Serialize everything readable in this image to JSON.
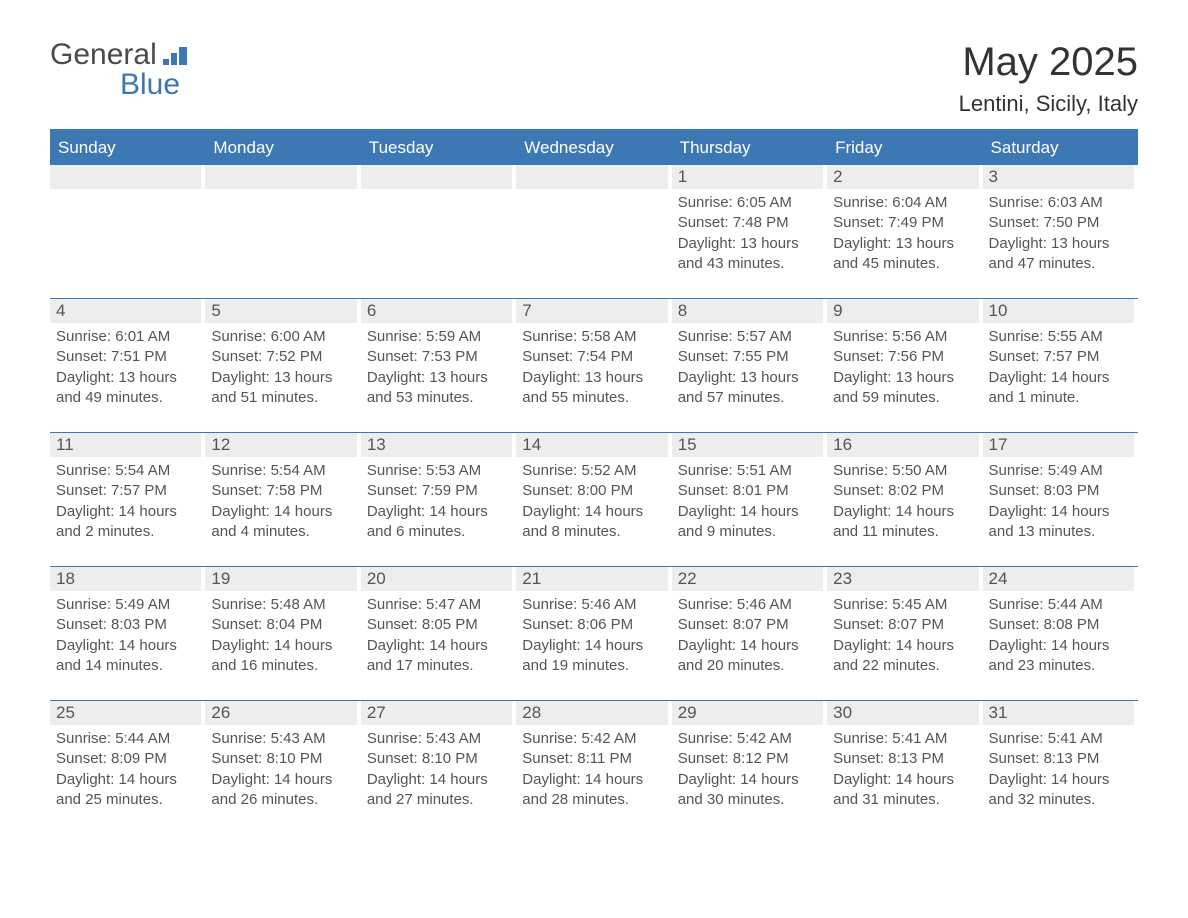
{
  "brand": {
    "name_part1": "General",
    "name_part2": "Blue",
    "text_color": "#4a4a4a",
    "accent_color": "#3c78b4"
  },
  "title": "May 2025",
  "location": "Lentini, Sicily, Italy",
  "colors": {
    "header_bg": "#3c78b4",
    "header_text": "#ffffff",
    "date_bar_bg": "#ededed",
    "body_text": "#555555",
    "page_bg": "#ffffff"
  },
  "font_sizes": {
    "title_pt": 40,
    "location_pt": 22,
    "dow_pt": 17,
    "date_pt": 17,
    "body_pt": 15
  },
  "days_of_week": [
    "Sunday",
    "Monday",
    "Tuesday",
    "Wednesday",
    "Thursday",
    "Friday",
    "Saturday"
  ],
  "labels": {
    "sunrise": "Sunrise:",
    "sunset": "Sunset:",
    "daylight": "Daylight:"
  },
  "weeks": [
    [
      null,
      null,
      null,
      null,
      {
        "date": "1",
        "sunrise": "6:05 AM",
        "sunset": "7:48 PM",
        "daylight": "13 hours and 43 minutes."
      },
      {
        "date": "2",
        "sunrise": "6:04 AM",
        "sunset": "7:49 PM",
        "daylight": "13 hours and 45 minutes."
      },
      {
        "date": "3",
        "sunrise": "6:03 AM",
        "sunset": "7:50 PM",
        "daylight": "13 hours and 47 minutes."
      }
    ],
    [
      {
        "date": "4",
        "sunrise": "6:01 AM",
        "sunset": "7:51 PM",
        "daylight": "13 hours and 49 minutes."
      },
      {
        "date": "5",
        "sunrise": "6:00 AM",
        "sunset": "7:52 PM",
        "daylight": "13 hours and 51 minutes."
      },
      {
        "date": "6",
        "sunrise": "5:59 AM",
        "sunset": "7:53 PM",
        "daylight": "13 hours and 53 minutes."
      },
      {
        "date": "7",
        "sunrise": "5:58 AM",
        "sunset": "7:54 PM",
        "daylight": "13 hours and 55 minutes."
      },
      {
        "date": "8",
        "sunrise": "5:57 AM",
        "sunset": "7:55 PM",
        "daylight": "13 hours and 57 minutes."
      },
      {
        "date": "9",
        "sunrise": "5:56 AM",
        "sunset": "7:56 PM",
        "daylight": "13 hours and 59 minutes."
      },
      {
        "date": "10",
        "sunrise": "5:55 AM",
        "sunset": "7:57 PM",
        "daylight": "14 hours and 1 minute."
      }
    ],
    [
      {
        "date": "11",
        "sunrise": "5:54 AM",
        "sunset": "7:57 PM",
        "daylight": "14 hours and 2 minutes."
      },
      {
        "date": "12",
        "sunrise": "5:54 AM",
        "sunset": "7:58 PM",
        "daylight": "14 hours and 4 minutes."
      },
      {
        "date": "13",
        "sunrise": "5:53 AM",
        "sunset": "7:59 PM",
        "daylight": "14 hours and 6 minutes."
      },
      {
        "date": "14",
        "sunrise": "5:52 AM",
        "sunset": "8:00 PM",
        "daylight": "14 hours and 8 minutes."
      },
      {
        "date": "15",
        "sunrise": "5:51 AM",
        "sunset": "8:01 PM",
        "daylight": "14 hours and 9 minutes."
      },
      {
        "date": "16",
        "sunrise": "5:50 AM",
        "sunset": "8:02 PM",
        "daylight": "14 hours and 11 minutes."
      },
      {
        "date": "17",
        "sunrise": "5:49 AM",
        "sunset": "8:03 PM",
        "daylight": "14 hours and 13 minutes."
      }
    ],
    [
      {
        "date": "18",
        "sunrise": "5:49 AM",
        "sunset": "8:03 PM",
        "daylight": "14 hours and 14 minutes."
      },
      {
        "date": "19",
        "sunrise": "5:48 AM",
        "sunset": "8:04 PM",
        "daylight": "14 hours and 16 minutes."
      },
      {
        "date": "20",
        "sunrise": "5:47 AM",
        "sunset": "8:05 PM",
        "daylight": "14 hours and 17 minutes."
      },
      {
        "date": "21",
        "sunrise": "5:46 AM",
        "sunset": "8:06 PM",
        "daylight": "14 hours and 19 minutes."
      },
      {
        "date": "22",
        "sunrise": "5:46 AM",
        "sunset": "8:07 PM",
        "daylight": "14 hours and 20 minutes."
      },
      {
        "date": "23",
        "sunrise": "5:45 AM",
        "sunset": "8:07 PM",
        "daylight": "14 hours and 22 minutes."
      },
      {
        "date": "24",
        "sunrise": "5:44 AM",
        "sunset": "8:08 PM",
        "daylight": "14 hours and 23 minutes."
      }
    ],
    [
      {
        "date": "25",
        "sunrise": "5:44 AM",
        "sunset": "8:09 PM",
        "daylight": "14 hours and 25 minutes."
      },
      {
        "date": "26",
        "sunrise": "5:43 AM",
        "sunset": "8:10 PM",
        "daylight": "14 hours and 26 minutes."
      },
      {
        "date": "27",
        "sunrise": "5:43 AM",
        "sunset": "8:10 PM",
        "daylight": "14 hours and 27 minutes."
      },
      {
        "date": "28",
        "sunrise": "5:42 AM",
        "sunset": "8:11 PM",
        "daylight": "14 hours and 28 minutes."
      },
      {
        "date": "29",
        "sunrise": "5:42 AM",
        "sunset": "8:12 PM",
        "daylight": "14 hours and 30 minutes."
      },
      {
        "date": "30",
        "sunrise": "5:41 AM",
        "sunset": "8:13 PM",
        "daylight": "14 hours and 31 minutes."
      },
      {
        "date": "31",
        "sunrise": "5:41 AM",
        "sunset": "8:13 PM",
        "daylight": "14 hours and 32 minutes."
      }
    ]
  ]
}
